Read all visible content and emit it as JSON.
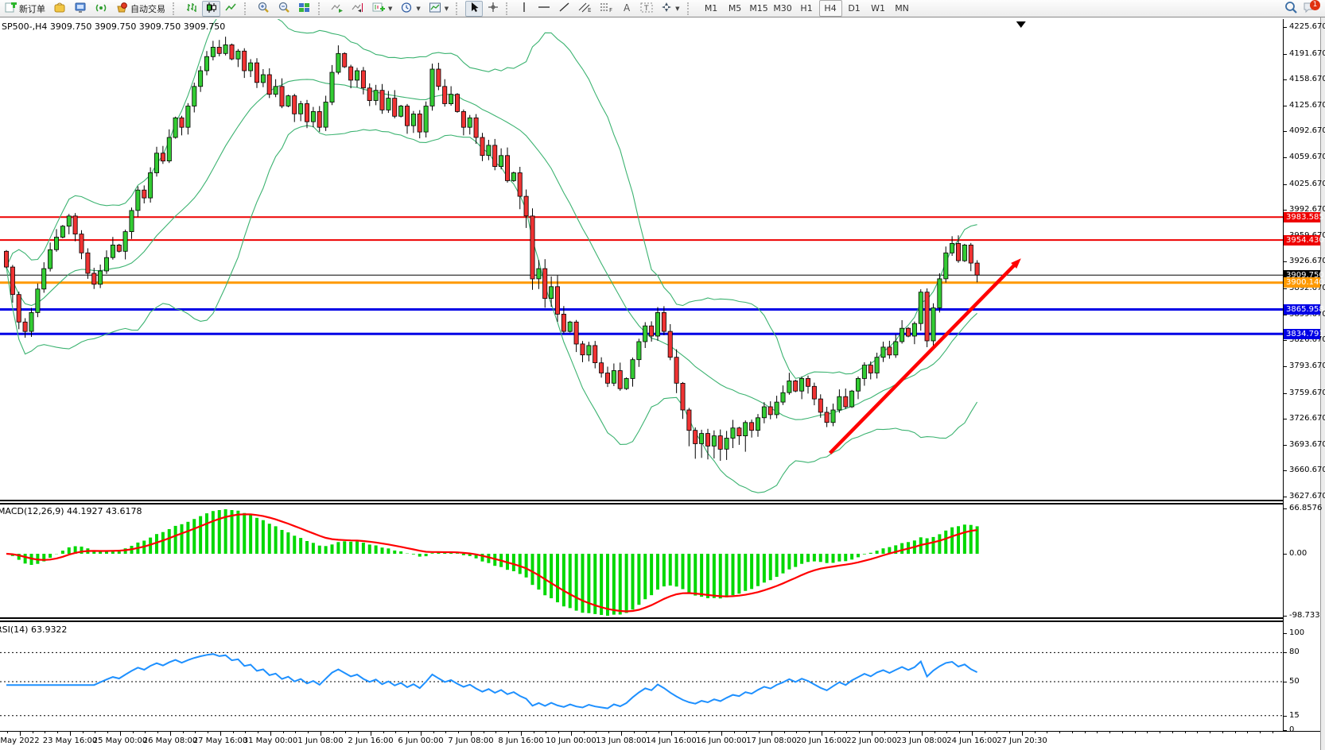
{
  "toolbar": {
    "new_order_label": "新订单",
    "auto_trading_label": "自动交易",
    "timeframes": [
      "M1",
      "M5",
      "M15",
      "M30",
      "H1",
      "H4",
      "D1",
      "W1",
      "MN"
    ],
    "active_timeframe": "H4",
    "notification_badge": "1",
    "icons": [
      "new-order",
      "market-box",
      "terminal",
      "signal",
      "auto-trading",
      "bar-chart",
      "candlestick-chart",
      "line-chart",
      "zoom-in",
      "zoom-out",
      "tile-windows",
      "auto-scroll",
      "chart-shift",
      "new-chart",
      "periods",
      "templates",
      "cursor",
      "crosshair",
      "vertical-line",
      "horizontal-line",
      "trend-line",
      "equidistant-channel",
      "fibonacci",
      "text",
      "text-label",
      "arrows",
      "search",
      "chat"
    ]
  },
  "chart": {
    "title": "SP500-,H4 3909.750 3909.750 3909.750 3909.750",
    "symbol": "SP500-",
    "period": "H4",
    "ohlc": [
      "3909.750",
      "3909.750",
      "3909.750",
      "3909.750"
    ]
  },
  "price_axis_ticks": [
    "4225.670",
    "4191.670",
    "4158.670",
    "4125.670",
    "4092.670",
    "4059.670",
    "4025.670",
    "3992.670",
    "3959.670",
    "3926.670",
    "3892.670",
    "3859.670",
    "3826.670",
    "3793.670",
    "3759.670",
    "3726.670",
    "3693.670",
    "3660.670",
    "3627.670"
  ],
  "hlines": [
    {
      "label": "3983.585",
      "price": 3983.585,
      "color": "#ee0000",
      "width": 2
    },
    {
      "label": "3954.430",
      "price": 3954.43,
      "color": "#ee0000",
      "width": 2
    },
    {
      "label": "3909.750",
      "price": 3909.75,
      "color": "#000000",
      "width": 1,
      "role": "current-price"
    },
    {
      "label": "3900.140",
      "price": 3900.14,
      "color": "#ff9900",
      "width": 3
    },
    {
      "label": "3865.958",
      "price": 3865.958,
      "color": "#0000e6",
      "width": 3
    },
    {
      "label": "3834.791",
      "price": 3834.791,
      "color": "#0000e6",
      "width": 3
    }
  ],
  "macd_panel": {
    "label": "MACD(12,26,9) 44.1927 43.6178",
    "axis_labels": [
      "66.8576",
      "0.00",
      "-98.733"
    ],
    "axis_values": [
      66.8576,
      0,
      -98.733
    ]
  },
  "rsi_panel": {
    "label": "RSI(14) 63.9322",
    "axis_labels": [
      "100",
      "80",
      "50",
      "15",
      "0"
    ],
    "axis_values": [
      100,
      80,
      50,
      15,
      0
    ],
    "levels": [
      80,
      50,
      15
    ]
  },
  "time_axis": {
    "labels": [
      "May 2022",
      "23 May 16:00",
      "25 May 00:00",
      "26 May 08:00",
      "27 May 16:00",
      "31 May 00:00",
      "1 Jun 08:00",
      "2 Jun 16:00",
      "6 Jun 00:00",
      "7 Jun 08:00",
      "8 Jun 16:00",
      "10 Jun 00:00",
      "13 Jun 08:00",
      "14 Jun 16:00",
      "16 Jun 00:00",
      "17 Jun 08:00",
      "20 Jun 16:00",
      "22 Jun 00:00",
      "23 Jun 08:00",
      "24 Jun 16:00",
      "27 Jun 20:30"
    ]
  },
  "chart_data": {
    "type": "candlestick",
    "symbol": "SP500-",
    "timeframe": "H4",
    "title": "SP500-,H4",
    "price_range": {
      "top": 4225.67,
      "bottom": 3627.67
    },
    "closes": [
      3920,
      3885,
      3850,
      3838,
      3862,
      3892,
      3918,
      3942,
      3958,
      3972,
      3985,
      3962,
      3938,
      3912,
      3898,
      3915,
      3932,
      3948,
      3940,
      3965,
      3992,
      4018,
      4008,
      4040,
      4065,
      4055,
      4085,
      4110,
      4098,
      4125,
      4150,
      4170,
      4188,
      4200,
      4192,
      4203,
      4185,
      4195,
      4170,
      4180,
      4155,
      4165,
      4140,
      4150,
      4125,
      4138,
      4115,
      4128,
      4105,
      4118,
      4098,
      4130,
      4168,
      4192,
      4175,
      4158,
      4170,
      4148,
      4132,
      4145,
      4120,
      4135,
      4112,
      4125,
      4100,
      4115,
      4092,
      4125,
      4172,
      4150,
      4128,
      4140,
      4118,
      4098,
      4110,
      4085,
      4062,
      4075,
      4048,
      4062,
      4030,
      4040,
      4010,
      3985,
      3905,
      3918,
      3880,
      3895,
      3860,
      3838,
      3850,
      3822,
      3808,
      3820,
      3798,
      3785,
      3772,
      3788,
      3765,
      3778,
      3802,
      3825,
      3845,
      3832,
      3862,
      3838,
      3805,
      3772,
      3738,
      3712,
      3695,
      3708,
      3692,
      3705,
      3688,
      3702,
      3715,
      3705,
      3722,
      3712,
      3728,
      3742,
      3732,
      3748,
      3760,
      3775,
      3762,
      3778,
      3768,
      3752,
      3735,
      3722,
      3738,
      3755,
      3742,
      3762,
      3778,
      3795,
      3785,
      3805,
      3818,
      3808,
      3825,
      3842,
      3832,
      3848,
      3888,
      3826,
      3868,
      3905,
      3938,
      3950,
      3928,
      3948,
      3925,
      3909.75
    ],
    "open_first": 3940,
    "colors": {
      "bull": "#33cc33",
      "bear": "#f03333",
      "wick": "#000000"
    },
    "indicators": {
      "bollinger": {
        "period": 20,
        "deviation": 2,
        "color": "#3cb371"
      },
      "macd": {
        "fast": 12,
        "slow": 26,
        "signal": 9,
        "hist_color": "#00d800",
        "signal_color": "#ff0000",
        "scale_max": 66.8576,
        "scale_min": -98.733,
        "current": [
          44.1927,
          43.6178
        ]
      },
      "rsi": {
        "period": 14,
        "color": "#1e90ff",
        "current": 63.9322,
        "levels": [
          80,
          50,
          15
        ]
      }
    },
    "trend_arrow": {
      "from": {
        "bar": 131.5,
        "price": 3683
      },
      "to": {
        "bar": 162,
        "price": 3931
      },
      "color": "#ff0000"
    },
    "shift_marker_bar": 162
  }
}
